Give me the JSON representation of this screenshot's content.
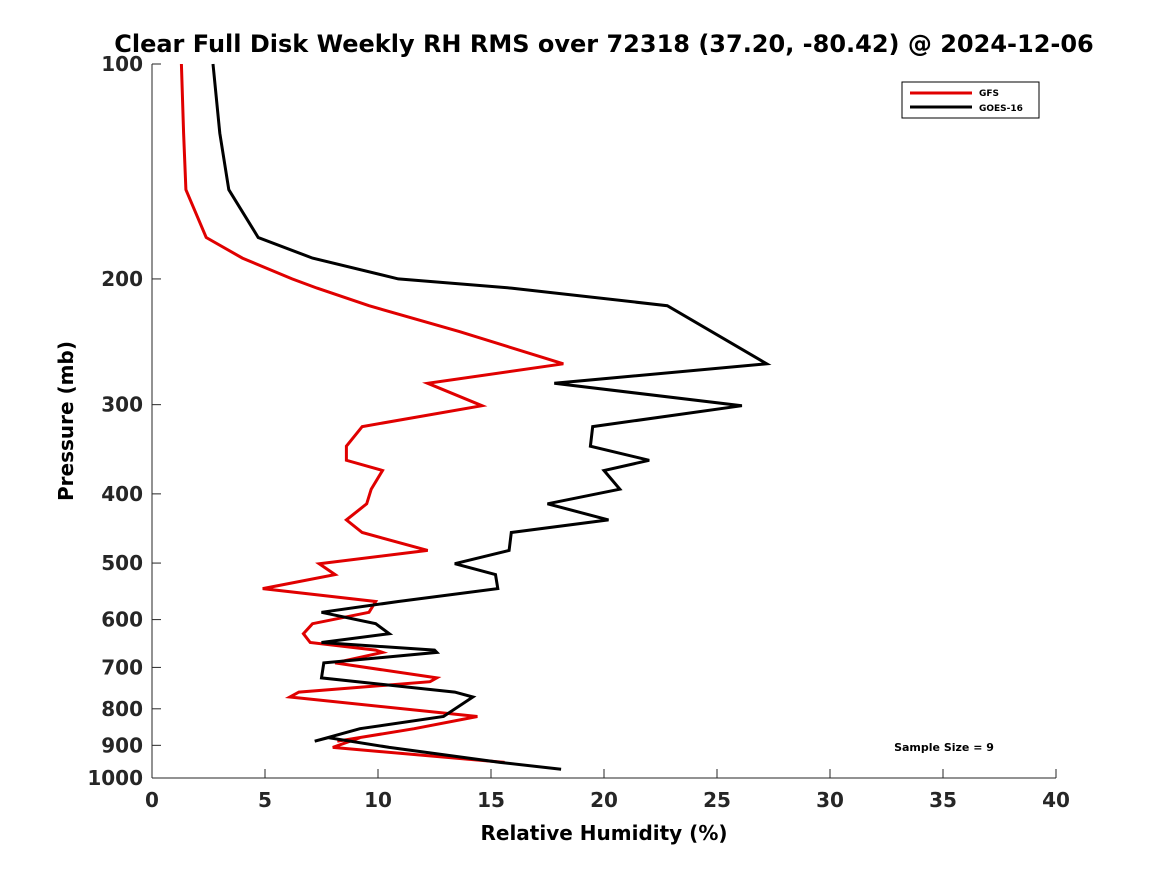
{
  "chart_data": {
    "type": "line",
    "title": "Clear Full Disk Weekly RH RMS over 72318 (37.20, -80.42) @ 2024-12-06",
    "xlabel": "Relative Humidity (%)",
    "ylabel": "Pressure (mb)",
    "xlim": [
      0,
      40
    ],
    "ylim": [
      100,
      1000
    ],
    "y_scale": "log",
    "y_reversed": true,
    "grid": false,
    "legend_position": "top-right",
    "annotation": "Sample Size = 9",
    "x_ticks": [
      "0",
      "5",
      "10",
      "15",
      "20",
      "25",
      "30",
      "35",
      "40"
    ],
    "y_ticks": [
      "100",
      "200",
      "300",
      "400",
      "500",
      "600",
      "700",
      "800",
      "900",
      "1000"
    ],
    "series": [
      {
        "name": "GFS",
        "color": "#e00000",
        "points": [
          [
            1.3,
            100
          ],
          [
            1.4,
            125
          ],
          [
            1.5,
            150
          ],
          [
            2.4,
            175
          ],
          [
            4.0,
            187
          ],
          [
            6.2,
            200
          ],
          [
            7.3,
            206
          ],
          [
            9.6,
            218
          ],
          [
            13.6,
            237
          ],
          [
            18.2,
            263
          ],
          [
            12.2,
            280
          ],
          [
            14.6,
            301
          ],
          [
            9.3,
            322
          ],
          [
            8.6,
            343
          ],
          [
            8.6,
            359
          ],
          [
            10.2,
            371
          ],
          [
            9.7,
            394
          ],
          [
            9.5,
            413
          ],
          [
            8.6,
            435
          ],
          [
            9.3,
            453
          ],
          [
            12.2,
            480
          ],
          [
            7.4,
            501
          ],
          [
            8.1,
            519
          ],
          [
            4.9,
            543
          ],
          [
            9.9,
            566
          ],
          [
            9.6,
            586
          ],
          [
            7.1,
            608
          ],
          [
            6.7,
            628
          ],
          [
            7.0,
            646
          ],
          [
            9.9,
            662
          ],
          [
            10.2,
            667
          ],
          [
            8.1,
            690
          ],
          [
            12.6,
            724
          ],
          [
            12.3,
            733
          ],
          [
            6.5,
            758
          ],
          [
            6.1,
            770
          ],
          [
            14.4,
            820
          ],
          [
            11.6,
            853
          ],
          [
            8.2,
            888
          ],
          [
            9.2,
            878
          ],
          [
            8.0,
            906
          ],
          [
            15.6,
            951
          ]
        ]
      },
      {
        "name": "GOES-16",
        "color": "#000000",
        "points": [
          [
            2.7,
            100
          ],
          [
            3.0,
            125
          ],
          [
            3.4,
            150
          ],
          [
            4.7,
            175
          ],
          [
            7.1,
            187
          ],
          [
            10.9,
            200
          ],
          [
            15.9,
            206
          ],
          [
            22.8,
            218
          ],
          [
            27.2,
            263
          ],
          [
            17.8,
            280
          ],
          [
            26.1,
            301
          ],
          [
            19.5,
            322
          ],
          [
            19.4,
            343
          ],
          [
            22.0,
            359
          ],
          [
            20.0,
            371
          ],
          [
            20.7,
            394
          ],
          [
            17.5,
            413
          ],
          [
            20.2,
            435
          ],
          [
            15.9,
            453
          ],
          [
            15.8,
            480
          ],
          [
            13.4,
            501
          ],
          [
            15.2,
            519
          ],
          [
            15.3,
            543
          ],
          [
            10.9,
            566
          ],
          [
            7.5,
            586
          ],
          [
            9.9,
            608
          ],
          [
            10.5,
            628
          ],
          [
            7.5,
            646
          ],
          [
            12.5,
            662
          ],
          [
            12.6,
            667
          ],
          [
            7.6,
            690
          ],
          [
            7.5,
            724
          ],
          [
            13.4,
            758
          ],
          [
            14.2,
            770
          ],
          [
            12.9,
            820
          ],
          [
            9.2,
            853
          ],
          [
            7.2,
            888
          ],
          [
            7.8,
            878
          ],
          [
            10.5,
            906
          ],
          [
            15.4,
            951
          ],
          [
            18.1,
            972
          ]
        ]
      }
    ]
  }
}
